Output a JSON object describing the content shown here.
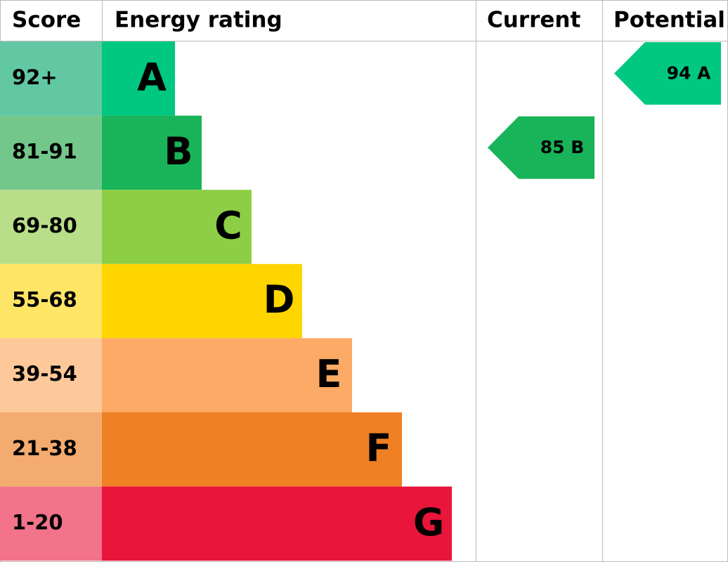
{
  "header": {
    "score": "Score",
    "rating": "Energy rating",
    "current": "Current",
    "potential": "Potential"
  },
  "bands": [
    {
      "score": "92+",
      "letter": "A",
      "color": "#00c781",
      "score_color": "#62c8a4"
    },
    {
      "score": "81-91",
      "letter": "B",
      "color": "#19b459",
      "score_color": "#73c78a"
    },
    {
      "score": "69-80",
      "letter": "C",
      "color": "#8dce46",
      "score_color": "#b8de8a"
    },
    {
      "score": "55-68",
      "letter": "D",
      "color": "#ffd500",
      "score_color": "#ffe566"
    },
    {
      "score": "39-54",
      "letter": "E",
      "color": "#fcaa65",
      "score_color": "#fdc89a"
    },
    {
      "score": "21-38",
      "letter": "F",
      "color": "#ef8023",
      "score_color": "#f4ab6f"
    },
    {
      "score": "1-20",
      "letter": "G",
      "color": "#e9153b",
      "score_color": "#f2738a"
    }
  ],
  "current": {
    "score": 85,
    "rating": "B"
  },
  "potential": {
    "score": 94,
    "rating": "A"
  }
}
